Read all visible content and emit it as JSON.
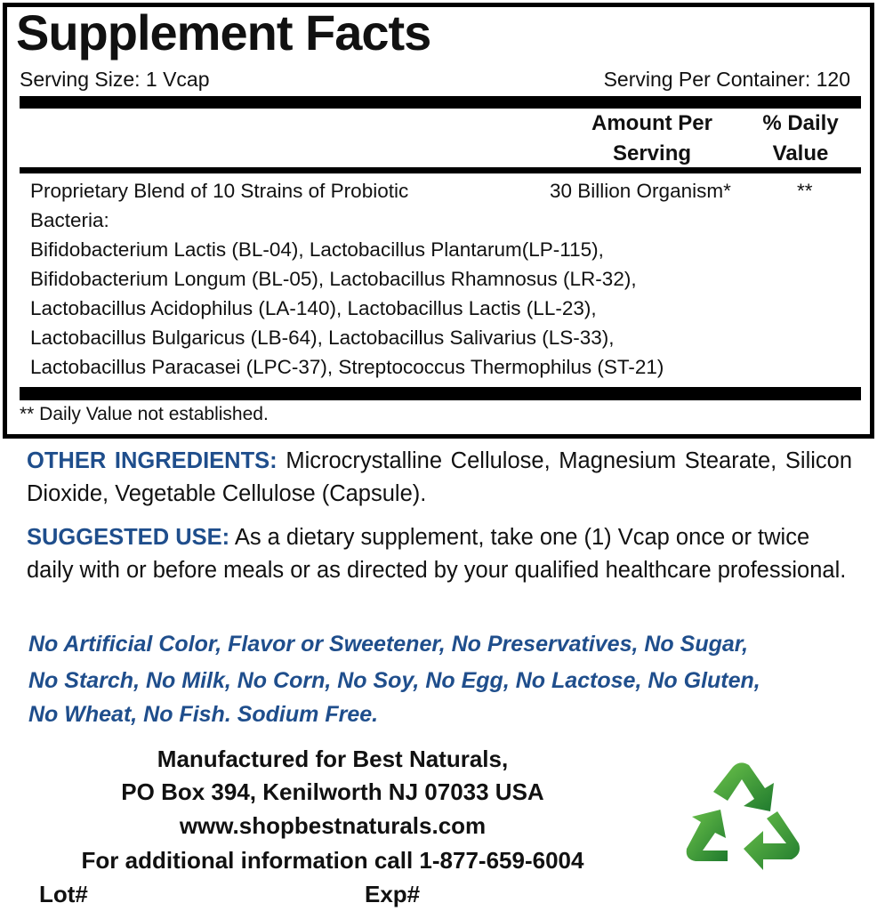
{
  "facts": {
    "title": "Supplement Facts",
    "serving_size": "Serving Size: 1 Vcap",
    "servings_per_container": "Serving Per Container: 120",
    "col_amount": [
      "Amount Per",
      "Serving"
    ],
    "col_dv": [
      "% Daily",
      "Value"
    ],
    "blend_name": [
      "Proprietary Blend of 10 Strains of Probiotic",
      "Bacteria:"
    ],
    "blend_amount": "30 Billion Organism*",
    "blend_dv": "**",
    "strains": [
      "Bifidobacterium Lactis (BL-04), Lactobacillus Plantarum(LP-115),",
      "Bifidobacterium Longum (BL-05), Lactobacillus Rhamnosus (LR-32),",
      "Lactobacillus Acidophilus (LA-140), Lactobacillus Lactis (LL-23),",
      "Lactobacillus Bulgaricus (LB-64), Lactobacillus Salivarius (LS-33),",
      "Lactobacillus Paracasei (LPC-37), Streptococcus Thermophilus (ST-21)"
    ],
    "footnote": "** Daily Value not established."
  },
  "other_ingredients": {
    "label": "OTHER INGREDIENTS:",
    "text": "Microcrystalline Cellulose, Magnesium Stearate, Silicon Dioxide, Vegetable Cellulose (Capsule)."
  },
  "suggested_use": {
    "label": "SUGGESTED USE:",
    "text": "As a dietary supplement, take one (1) Vcap once or twice daily with or before meals or as directed by your qualified healthcare professional."
  },
  "free_from": [
    "No Artificial Color, Flavor or Sweetener, No Preservatives, No Sugar,",
    "No Starch, No Milk, No Corn, No Soy, No Egg, No Lactose, No Gluten,",
    "No Wheat, No Fish. Sodium Free."
  ],
  "manufacturer": [
    "Manufactured for Best Naturals,",
    "PO Box 394, Kenilworth NJ 07033 USA",
    "www.shopbestnaturals.com",
    "For additional information call 1-877-659-6004"
  ],
  "lot_label": "Lot#",
  "exp_label": "Exp#",
  "colors": {
    "accent_blue": "#1f4e8c",
    "recycle_green": "#3a9a3a"
  },
  "icons": [
    "recycle-icon"
  ]
}
